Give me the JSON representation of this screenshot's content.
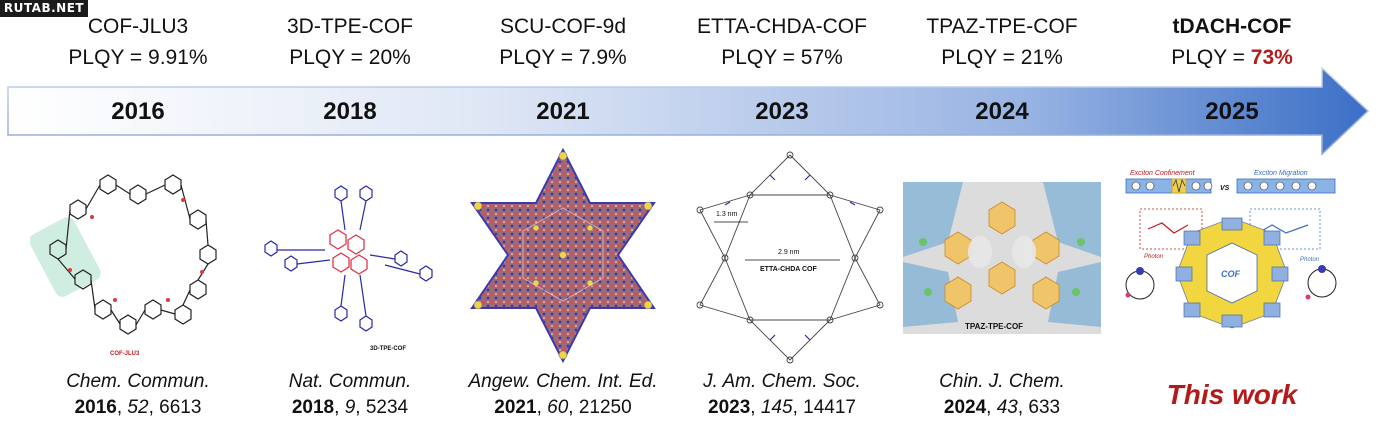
{
  "watermark": "RUTAB.NET",
  "timeline": [
    {
      "name": "COF-JLU3",
      "plqy_label": "PLQY = ",
      "plqy_value": "9.91%",
      "year": "2016",
      "journal": "Chem. Commun.",
      "cite_year": "2016",
      "cite_vol": "52",
      "cite_page": "6613",
      "figure_caption": "COF-JLU3"
    },
    {
      "name": "3D-TPE-COF",
      "plqy_label": "PLQY = ",
      "plqy_value": "20%",
      "year": "2018",
      "journal": "Nat. Commun.",
      "cite_year": "2018",
      "cite_vol": "9",
      "cite_page": "5234",
      "figure_caption": "3D-TPE-COF"
    },
    {
      "name": "SCU-COF-9d",
      "plqy_label": "PLQY = ",
      "plqy_value": "7.9%",
      "year": "2021",
      "journal": "Angew. Chem. Int. Ed.",
      "cite_year": "2021",
      "cite_vol": "60",
      "cite_page": "21250"
    },
    {
      "name": "ETTA-CHDA-COF",
      "plqy_label": "PLQY = ",
      "plqy_value": "57%",
      "year": "2023",
      "journal": "J. Am. Chem. Soc.",
      "cite_year": "2023",
      "cite_vol": "145",
      "cite_page": "14417",
      "fig_label_1": "1.3 nm",
      "fig_label_2": "2.9 nm",
      "fig_label_3": "ETTA-CHDA COF"
    },
    {
      "name": "TPAZ-TPE-COF",
      "plqy_label": "PLQY = ",
      "plqy_value": "21%",
      "year": "2024",
      "journal": "Chin. J. Chem.",
      "cite_year": "2024",
      "cite_vol": "43",
      "cite_page": "633",
      "figure_caption": "TPAZ-TPE-COF"
    },
    {
      "name": "tDACH-COF",
      "plqy_label": "PLQY = ",
      "plqy_value": "73%",
      "year": "2025",
      "this_work": "This work",
      "fig_exciton_confinement": "Exciton Confinement",
      "fig_vs": "VS",
      "fig_exciton_migration": "Exciton Migration",
      "fig_photon_left": "Photon",
      "fig_photon_right": "Photon",
      "fig_cof": "COF"
    }
  ],
  "colors": {
    "arrow_light": "#ffffff",
    "arrow_dark": "#3b6fc6",
    "highlight_red": "#b31b1b"
  }
}
